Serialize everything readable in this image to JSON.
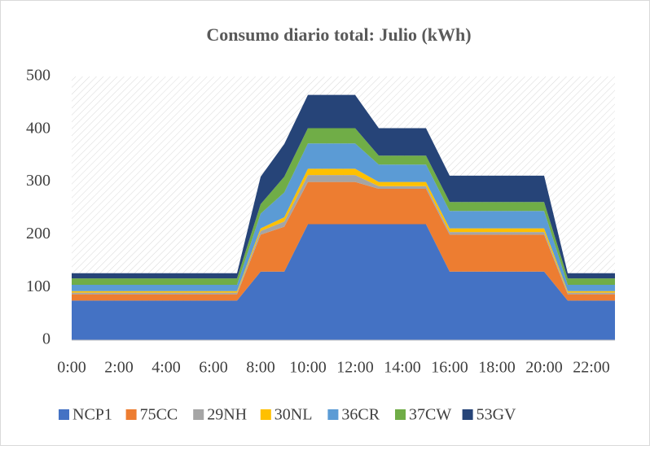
{
  "chart_data": {
    "type": "stacked_area",
    "title": "Consumo diario total: Julio (kWh)",
    "categories": [
      "0:00",
      null,
      "2:00",
      null,
      "4:00",
      null,
      "6:00",
      null,
      "8:00",
      null,
      "10:00",
      null,
      "12:00",
      null,
      "14:00",
      null,
      "16:00",
      null,
      "18:00",
      null,
      "20:00",
      null,
      "22:00",
      null
    ],
    "series": [
      {
        "name": "NCP1",
        "color": "#4472c4",
        "values": [
          75,
          75,
          75,
          75,
          75,
          75,
          75,
          75,
          130,
          130,
          220,
          220,
          220,
          220,
          220,
          220,
          130,
          130,
          130,
          130,
          130,
          75,
          75,
          75
        ]
      },
      {
        "name": "75CC",
        "color": "#ed7d31",
        "values": [
          12,
          12,
          12,
          12,
          12,
          12,
          12,
          12,
          70,
          85,
          80,
          80,
          80,
          67,
          67,
          67,
          70,
          70,
          70,
          70,
          70,
          12,
          12,
          12
        ]
      },
      {
        "name": "29NH",
        "color": "#a5a5a5",
        "values": [
          3,
          3,
          3,
          3,
          3,
          3,
          3,
          3,
          7,
          10,
          13,
          13,
          13,
          5,
          5,
          5,
          5,
          5,
          5,
          5,
          5,
          3,
          3,
          3
        ]
      },
      {
        "name": "30NL",
        "color": "#ffc000",
        "values": [
          3,
          3,
          3,
          3,
          3,
          3,
          3,
          3,
          5,
          8,
          12,
          12,
          12,
          8,
          8,
          8,
          7,
          7,
          7,
          7,
          7,
          3,
          3,
          3
        ]
      },
      {
        "name": "36CR",
        "color": "#5b9bd5",
        "values": [
          12,
          12,
          12,
          12,
          12,
          12,
          12,
          12,
          28,
          47,
          48,
          48,
          48,
          33,
          33,
          33,
          33,
          33,
          33,
          33,
          33,
          12,
          12,
          12
        ]
      },
      {
        "name": "37CW",
        "color": "#70ad47",
        "values": [
          12,
          12,
          12,
          12,
          12,
          12,
          12,
          12,
          18,
          30,
          29,
          29,
          29,
          17,
          17,
          17,
          17,
          17,
          17,
          17,
          17,
          12,
          12,
          12
        ]
      },
      {
        "name": "53GV",
        "color": "#264478",
        "values": [
          10,
          10,
          10,
          10,
          10,
          10,
          10,
          10,
          52,
          62,
          63,
          63,
          63,
          52,
          52,
          52,
          50,
          50,
          50,
          50,
          50,
          10,
          10,
          10
        ]
      }
    ],
    "ylim": [
      0,
      500
    ],
    "yticks": [
      0,
      100,
      200,
      300,
      400,
      500
    ],
    "legend": "bottom"
  }
}
